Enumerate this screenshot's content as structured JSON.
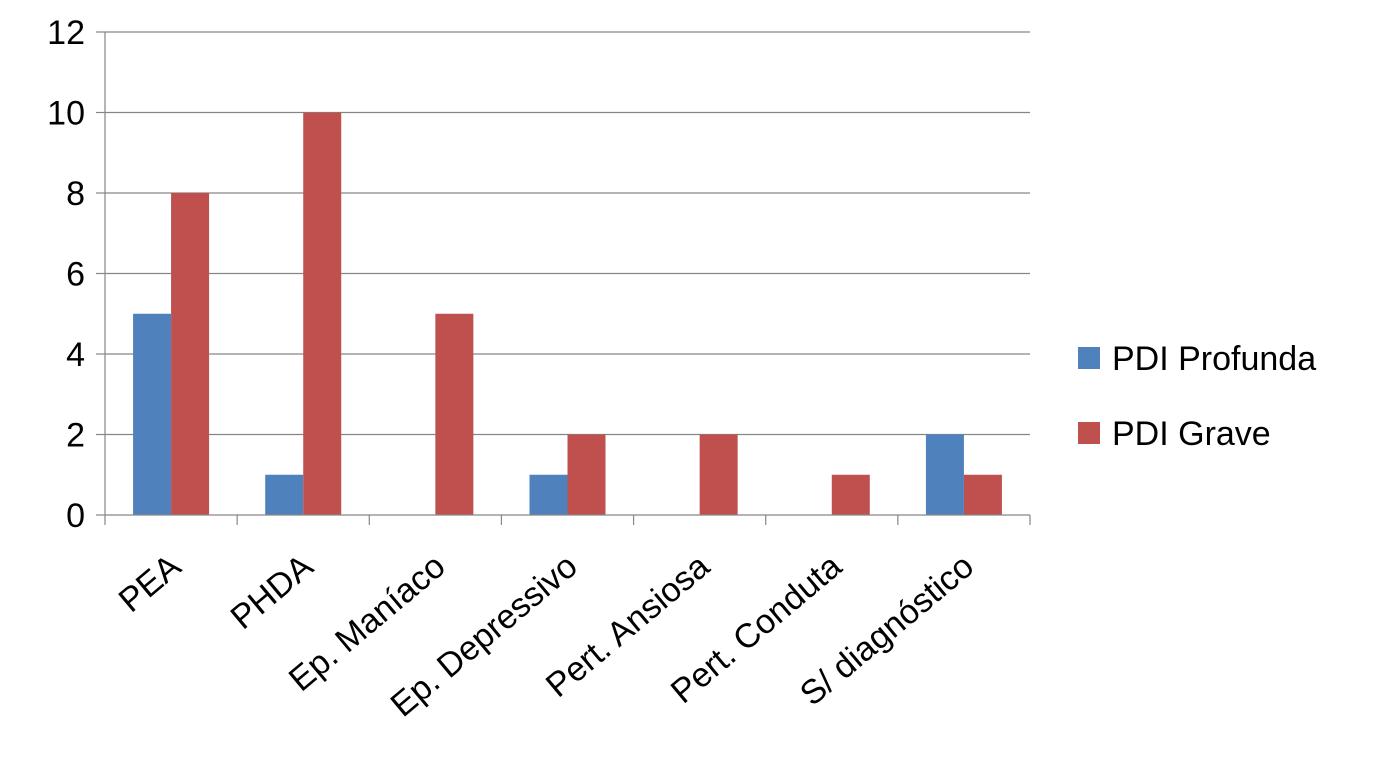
{
  "chart_data": {
    "type": "bar",
    "title": "",
    "xlabel": "",
    "ylabel": "",
    "categories": [
      "PEA",
      "PHDA",
      "Ep. Maníaco",
      "Ep. Depressivo",
      "Pert. Ansiosa",
      "Pert. Conduta",
      "S/ diagnóstico"
    ],
    "series": [
      {
        "name": "PDI Profunda",
        "color": "#4F81BD",
        "values": [
          5,
          1,
          0,
          1,
          0,
          0,
          2
        ]
      },
      {
        "name": "PDI Grave",
        "color": "#C0504D",
        "values": [
          8,
          10,
          5,
          2,
          2,
          1,
          1
        ]
      }
    ],
    "ylim": [
      0,
      12
    ],
    "yticks": [
      0,
      2,
      4,
      6,
      8,
      10,
      12
    ],
    "grid": true,
    "legend_position": "right"
  }
}
